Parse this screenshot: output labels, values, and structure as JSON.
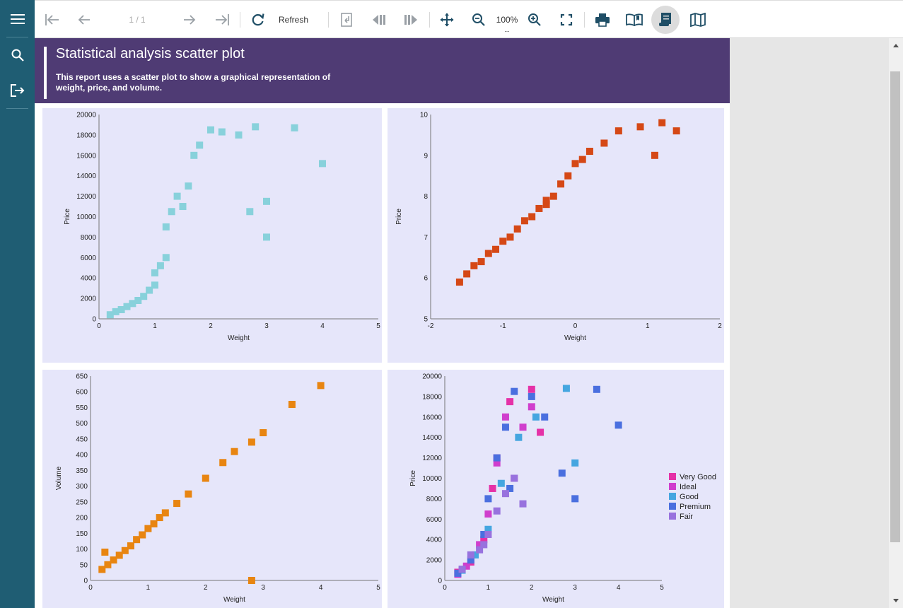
{
  "toolbar": {
    "page_indicator": "1 / 1",
    "refresh_label": "Refresh",
    "zoom_level": "100%",
    "zoom_more": "..."
  },
  "sidebar": {
    "items": [
      {
        "icon": "hamburger-menu-icon"
      },
      {
        "icon": "search-icon"
      },
      {
        "icon": "export-icon"
      }
    ]
  },
  "report": {
    "title": "Statistical analysis scatter plot",
    "description": "This report uses a scatter plot to show a graphical representation of weight, price, and volume."
  },
  "colors": {
    "sidebar": "#1f5d73",
    "banner": "#4f3b74",
    "panel": "#e6e6fa",
    "cyan": "#88d1db",
    "red": "#d54816",
    "orange": "#e88511",
    "very_good": "#e531a7",
    "ideal": "#d03ecd",
    "good": "#45a6e0",
    "premium": "#4a6fdf",
    "fair": "#9872de"
  },
  "chart_data": [
    {
      "type": "scatter",
      "title": "",
      "xlabel": "Weight",
      "ylabel": "Price",
      "xlim": [
        0,
        5
      ],
      "ylim": [
        0,
        20000
      ],
      "xticks": [
        "0",
        "1",
        "2",
        "3",
        "4",
        "5"
      ],
      "yticks": [
        "0",
        "2000",
        "4000",
        "6000",
        "8000",
        "10000",
        "12000",
        "14000",
        "16000",
        "18000",
        "20000"
      ],
      "series": [
        {
          "color": "#88d1db",
          "points": [
            [
              0.2,
              400
            ],
            [
              0.3,
              700
            ],
            [
              0.4,
              900
            ],
            [
              0.5,
              1200
            ],
            [
              0.6,
              1500
            ],
            [
              0.7,
              1800
            ],
            [
              0.8,
              2200
            ],
            [
              0.9,
              2800
            ],
            [
              1.0,
              3300
            ],
            [
              1.0,
              4500
            ],
            [
              1.1,
              5200
            ],
            [
              1.2,
              6000
            ],
            [
              1.2,
              9000
            ],
            [
              1.3,
              10500
            ],
            [
              1.4,
              12000
            ],
            [
              1.5,
              11000
            ],
            [
              1.6,
              13000
            ],
            [
              1.7,
              16000
            ],
            [
              1.8,
              17000
            ],
            [
              2.0,
              18500
            ],
            [
              2.2,
              18300
            ],
            [
              2.5,
              18000
            ],
            [
              2.8,
              18800
            ],
            [
              3.5,
              18700
            ],
            [
              4.0,
              15200
            ],
            [
              3.0,
              11500
            ],
            [
              3.0,
              8000
            ],
            [
              2.7,
              10500
            ]
          ]
        }
      ]
    },
    {
      "type": "scatter",
      "title": "",
      "xlabel": "Weight",
      "ylabel": "Price",
      "xlim": [
        -2,
        2
      ],
      "ylim": [
        5,
        10
      ],
      "xticks": [
        "-2",
        "-1",
        "0",
        "1",
        "2"
      ],
      "yticks": [
        "5",
        "6",
        "7",
        "8",
        "9",
        "10"
      ],
      "series": [
        {
          "color": "#d54816",
          "points": [
            [
              -1.6,
              5.9
            ],
            [
              -1.5,
              6.1
            ],
            [
              -1.4,
              6.3
            ],
            [
              -1.3,
              6.4
            ],
            [
              -1.2,
              6.6
            ],
            [
              -1.1,
              6.7
            ],
            [
              -1.0,
              6.9
            ],
            [
              -0.9,
              7.0
            ],
            [
              -0.8,
              7.2
            ],
            [
              -0.7,
              7.4
            ],
            [
              -0.6,
              7.5
            ],
            [
              -0.5,
              7.7
            ],
            [
              -0.4,
              7.9
            ],
            [
              -0.3,
              8.0
            ],
            [
              -0.2,
              8.3
            ],
            [
              -0.1,
              8.5
            ],
            [
              0.0,
              8.8
            ],
            [
              0.1,
              8.9
            ],
            [
              0.2,
              9.1
            ],
            [
              0.4,
              9.3
            ],
            [
              0.6,
              9.6
            ],
            [
              0.9,
              9.7
            ],
            [
              1.2,
              9.8
            ],
            [
              1.4,
              9.6
            ],
            [
              1.1,
              9.0
            ],
            [
              -0.4,
              7.8
            ]
          ]
        }
      ]
    },
    {
      "type": "scatter",
      "title": "",
      "xlabel": "Weight",
      "ylabel": "Volume",
      "xlim": [
        0,
        5
      ],
      "ylim": [
        0,
        650
      ],
      "xticks": [
        "0",
        "1",
        "2",
        "3",
        "4",
        "5"
      ],
      "yticks": [
        "0",
        "50",
        "100",
        "150",
        "200",
        "250",
        "300",
        "350",
        "400",
        "450",
        "500",
        "550",
        "600",
        "650"
      ],
      "series": [
        {
          "color": "#e88511",
          "points": [
            [
              0.2,
              35
            ],
            [
              0.3,
              50
            ],
            [
              0.4,
              65
            ],
            [
              0.5,
              80
            ],
            [
              0.6,
              95
            ],
            [
              0.7,
              110
            ],
            [
              0.8,
              130
            ],
            [
              0.9,
              145
            ],
            [
              1.0,
              165
            ],
            [
              1.1,
              180
            ],
            [
              1.2,
              200
            ],
            [
              1.3,
              215
            ],
            [
              1.5,
              245
            ],
            [
              1.7,
              275
            ],
            [
              2.0,
              325
            ],
            [
              2.3,
              375
            ],
            [
              2.5,
              410
            ],
            [
              2.8,
              440
            ],
            [
              3.0,
              470
            ],
            [
              3.5,
              560
            ],
            [
              4.0,
              620
            ],
            [
              0.25,
              90
            ],
            [
              2.8,
              0
            ]
          ]
        }
      ]
    },
    {
      "type": "scatter",
      "title": "",
      "xlabel": "Weight",
      "ylabel": "Price",
      "xlim": [
        0,
        5
      ],
      "ylim": [
        0,
        20000
      ],
      "xticks": [
        "0",
        "1",
        "2",
        "3",
        "4",
        "5"
      ],
      "yticks": [
        "0",
        "2000",
        "4000",
        "6000",
        "8000",
        "10000",
        "12000",
        "14000",
        "16000",
        "18000",
        "20000"
      ],
      "legend_position": "right",
      "series": [
        {
          "name": "Very Good",
          "color": "#e531a7",
          "points": [
            [
              0.3,
              800
            ],
            [
              0.6,
              1800
            ],
            [
              0.9,
              4000
            ],
            [
              1.1,
              9000
            ],
            [
              1.2,
              12000
            ],
            [
              1.5,
              17500
            ],
            [
              2.0,
              18700
            ],
            [
              2.2,
              14500
            ],
            [
              1.6,
              10000
            ]
          ]
        },
        {
          "name": "Ideal",
          "color": "#d03ecd",
          "points": [
            [
              0.3,
              600
            ],
            [
              0.5,
              1400
            ],
            [
              0.8,
              3500
            ],
            [
              1.0,
              6500
            ],
            [
              1.2,
              11500
            ],
            [
              1.4,
              16000
            ],
            [
              2.0,
              17000
            ],
            [
              1.8,
              15000
            ]
          ]
        },
        {
          "name": "Good",
          "color": "#45a6e0",
          "points": [
            [
              0.4,
              1000
            ],
            [
              0.7,
              2500
            ],
            [
              1.0,
              5000
            ],
            [
              1.3,
              9500
            ],
            [
              1.7,
              14000
            ],
            [
              2.8,
              18800
            ],
            [
              3.0,
              11500
            ],
            [
              2.1,
              16000
            ]
          ]
        },
        {
          "name": "Premium",
          "color": "#4a6fdf",
          "points": [
            [
              0.3,
              700
            ],
            [
              0.6,
              2000
            ],
            [
              0.9,
              4500
            ],
            [
              1.0,
              8000
            ],
            [
              1.2,
              12000
            ],
            [
              1.4,
              15000
            ],
            [
              1.6,
              18500
            ],
            [
              2.0,
              18000
            ],
            [
              2.3,
              16000
            ],
            [
              3.5,
              18700
            ],
            [
              4.0,
              15200
            ],
            [
              2.7,
              10500
            ],
            [
              3.0,
              8000
            ],
            [
              1.5,
              9000
            ]
          ]
        },
        {
          "name": "Fair",
          "color": "#9872de",
          "points": [
            [
              0.4,
              1100
            ],
            [
              0.6,
              2500
            ],
            [
              0.8,
              3000
            ],
            [
              1.0,
              4500
            ],
            [
              1.2,
              6800
            ],
            [
              1.4,
              8500
            ],
            [
              1.6,
              10000
            ],
            [
              1.8,
              7500
            ],
            [
              0.9,
              3500
            ]
          ]
        }
      ]
    }
  ]
}
